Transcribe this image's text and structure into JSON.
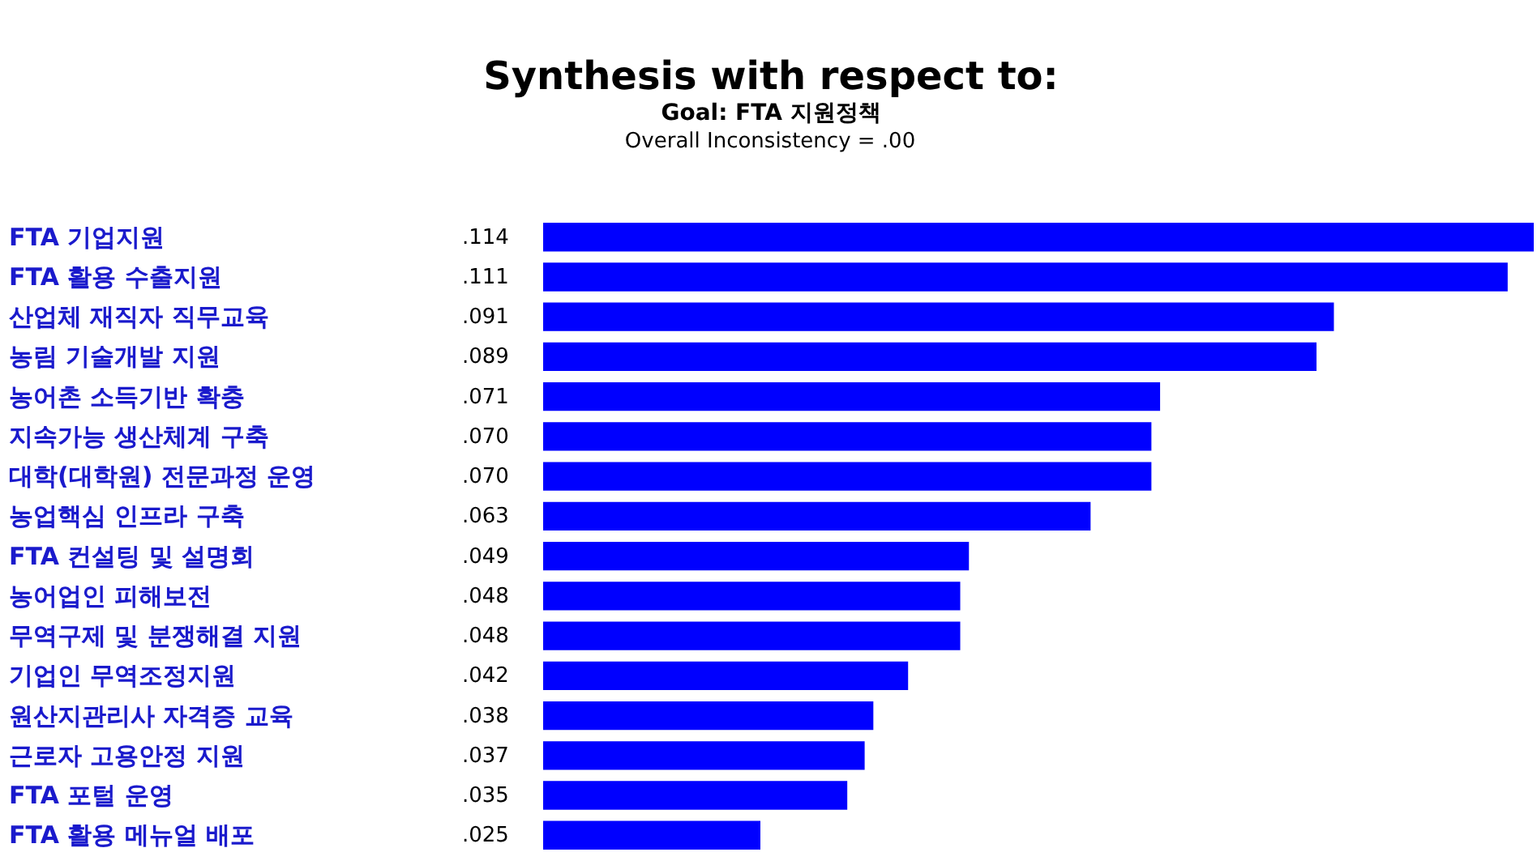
{
  "chart_data": {
    "type": "bar",
    "orientation": "horizontal",
    "title": "Synthesis with respect to:",
    "subtitle": "Goal: FTA 지원정책",
    "annotations": [
      "Overall Inconsistency = .00"
    ],
    "categories": [
      "FTA 기업지원",
      "FTA 활용 수출지원",
      "산업체 재직자 직무교육",
      "농림 기술개발 지원",
      "농어촌 소득기반 확충",
      "지속가능 생산체계 구축",
      "대학(대학원) 전문과정 운영",
      "농업핵심 인프라 구축",
      "FTA 컨설팅 및 설명회",
      "농어업인 피해보전",
      "무역구제 및 분쟁해결 지원",
      "기업인 무역조정지원",
      "원산지관리사 자격증 교육",
      "근로자 고용안정 지원",
      "FTA 포털 운영",
      "FTA 활용 메뉴얼 배포"
    ],
    "values": [
      0.114,
      0.111,
      0.091,
      0.089,
      0.071,
      0.07,
      0.07,
      0.063,
      0.049,
      0.048,
      0.048,
      0.042,
      0.038,
      0.037,
      0.035,
      0.025
    ],
    "value_labels": [
      ".114",
      ".111",
      ".091",
      ".089",
      ".071",
      ".070",
      ".070",
      ".063",
      ".049",
      ".048",
      ".048",
      ".042",
      ".038",
      ".037",
      ".035",
      ".025"
    ],
    "color": "#0000ff",
    "grid": false
  }
}
